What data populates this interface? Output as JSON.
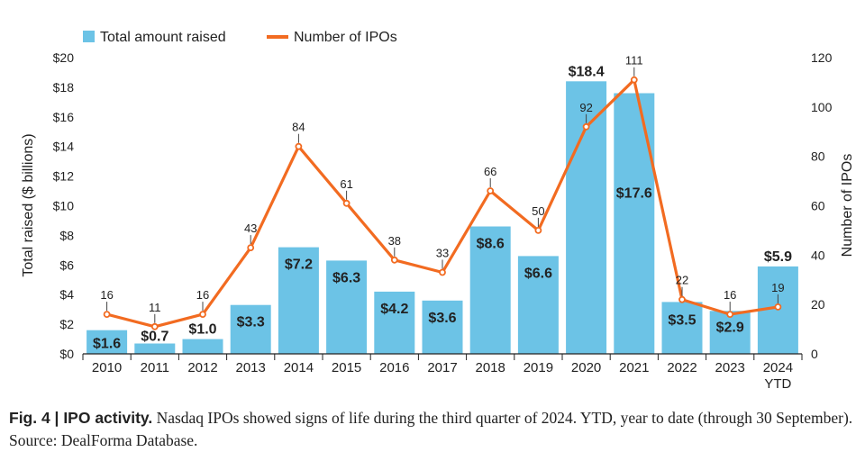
{
  "chart_data": {
    "type": "bar",
    "categories": [
      "2010",
      "2011",
      "2012",
      "2013",
      "2014",
      "2015",
      "2016",
      "2017",
      "2018",
      "2019",
      "2020",
      "2021",
      "2022",
      "2023",
      "2024\nYTD"
    ],
    "series": [
      {
        "name": "Total amount raised",
        "type": "bar",
        "axis": "left",
        "values": [
          1.6,
          0.7,
          1.0,
          3.3,
          7.2,
          6.3,
          4.2,
          3.6,
          8.6,
          6.6,
          18.4,
          17.6,
          3.5,
          2.9,
          5.9
        ],
        "labels": [
          "$1.6",
          "$0.7",
          "$1.0",
          "$3.3",
          "$7.2",
          "$6.3",
          "$4.2",
          "$3.6",
          "$8.6",
          "$6.6",
          "$18.4",
          "$17.6",
          "$3.5",
          "$2.9",
          "$5.9"
        ]
      },
      {
        "name": "Number of IPOs",
        "type": "line",
        "axis": "right",
        "values": [
          16,
          11,
          16,
          43,
          84,
          61,
          38,
          33,
          66,
          50,
          92,
          111,
          22,
          16,
          19
        ],
        "labels": [
          "16",
          "11",
          "16",
          "43",
          "84",
          "61",
          "38",
          "33",
          "66",
          "50",
          "92",
          "111",
          "22",
          "16",
          "19"
        ]
      }
    ],
    "ylabel": "Total raised ($ billions)",
    "y2label": "Number of IPOs",
    "ylim": [
      0,
      20
    ],
    "y2lim": [
      0,
      120
    ],
    "yticks": [
      "$0",
      "$2",
      "$4",
      "$6",
      "$8",
      "$10",
      "$12",
      "$14",
      "$16",
      "$18",
      "$20"
    ],
    "y2ticks": [
      "0",
      "20",
      "40",
      "60",
      "80",
      "100",
      "120"
    ],
    "legend": "top-left",
    "grid": false,
    "colors": {
      "bar": "#6cc3e6",
      "line": "#f26b21",
      "marker": "#f26b21",
      "text": "#222222"
    }
  },
  "caption": {
    "figure_label": "Fig. 4 | IPO activity.",
    "text": " Nasdaq IPOs showed signs of life during the third quarter of 2024. YTD, year to date (through 30 September). Source: DealForma Database."
  }
}
